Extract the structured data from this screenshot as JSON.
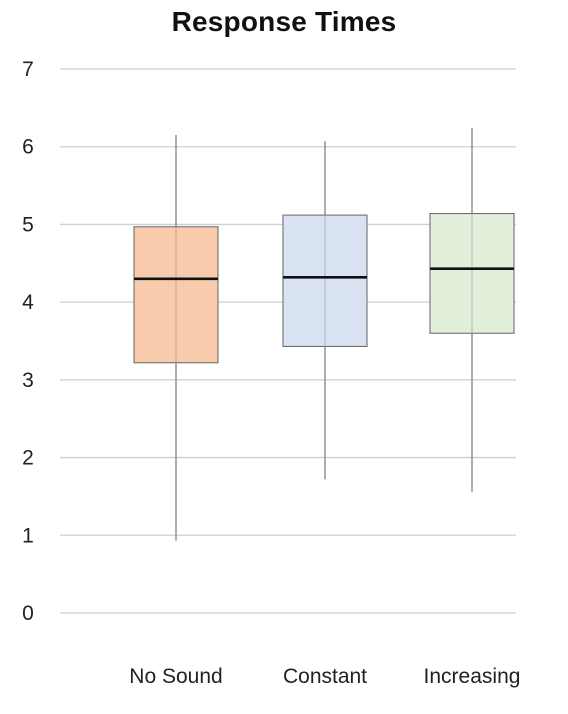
{
  "chart_data": {
    "type": "boxplot",
    "title": "Response Times",
    "xlabel": "",
    "ylabel": "",
    "ylim": [
      0,
      7
    ],
    "yticks": [
      "0",
      "1",
      "2",
      "3",
      "4",
      "5",
      "6",
      "7"
    ],
    "grid": true,
    "categories": [
      "No Sound",
      "Constant",
      "Increasing"
    ],
    "boxes": [
      {
        "category": "No Sound",
        "min": 0.93,
        "q1": 3.22,
        "median": 4.3,
        "q3": 4.97,
        "max": 6.15,
        "color": "#F8CBAD"
      },
      {
        "category": "Constant",
        "min": 1.72,
        "q1": 3.43,
        "median": 4.32,
        "q3": 5.12,
        "max": 6.07,
        "color": "#DAE3F3"
      },
      {
        "category": "Increasing",
        "min": 1.56,
        "q1": 3.6,
        "median": 4.43,
        "q3": 5.14,
        "max": 6.24,
        "color": "#E2EFDA"
      }
    ]
  }
}
